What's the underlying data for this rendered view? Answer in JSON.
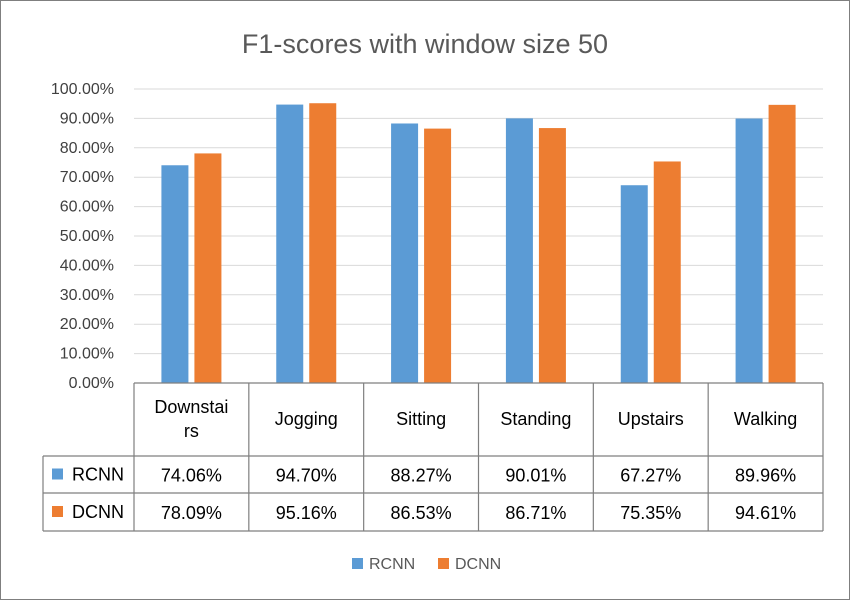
{
  "chart_data": {
    "type": "bar",
    "title": "F1-scores with window size 50",
    "categories": [
      "Downstairs",
      "Jogging",
      "Sitting",
      "Standing",
      "Upstairs",
      "Walking"
    ],
    "category_display": [
      [
        "Downstai",
        "rs"
      ],
      [
        "Jogging"
      ],
      [
        "Sitting"
      ],
      [
        "Standing"
      ],
      [
        "Upstairs"
      ],
      [
        "Walking"
      ]
    ],
    "series": [
      {
        "name": "RCNN",
        "color": "#5b9bd5",
        "values": [
          74.06,
          94.7,
          88.27,
          90.01,
          67.27,
          89.96
        ],
        "labels": [
          "74.06%",
          "94.70%",
          "88.27%",
          "90.01%",
          "67.27%",
          "89.96%"
        ]
      },
      {
        "name": "DCNN",
        "color": "#ed7d31",
        "values": [
          78.09,
          95.16,
          86.53,
          86.71,
          75.35,
          94.61
        ],
        "labels": [
          "78.09%",
          "95.16%",
          "86.53%",
          "86.71%",
          "75.35%",
          "94.61%"
        ]
      }
    ],
    "ylim": [
      0,
      100
    ],
    "yticks": [
      "0.00%",
      "10.00%",
      "20.00%",
      "30.00%",
      "40.00%",
      "50.00%",
      "60.00%",
      "70.00%",
      "80.00%",
      "90.00%",
      "100.00%"
    ],
    "xlabel": "",
    "ylabel": "",
    "grid": true,
    "legend": "bottom",
    "data_table": true
  }
}
